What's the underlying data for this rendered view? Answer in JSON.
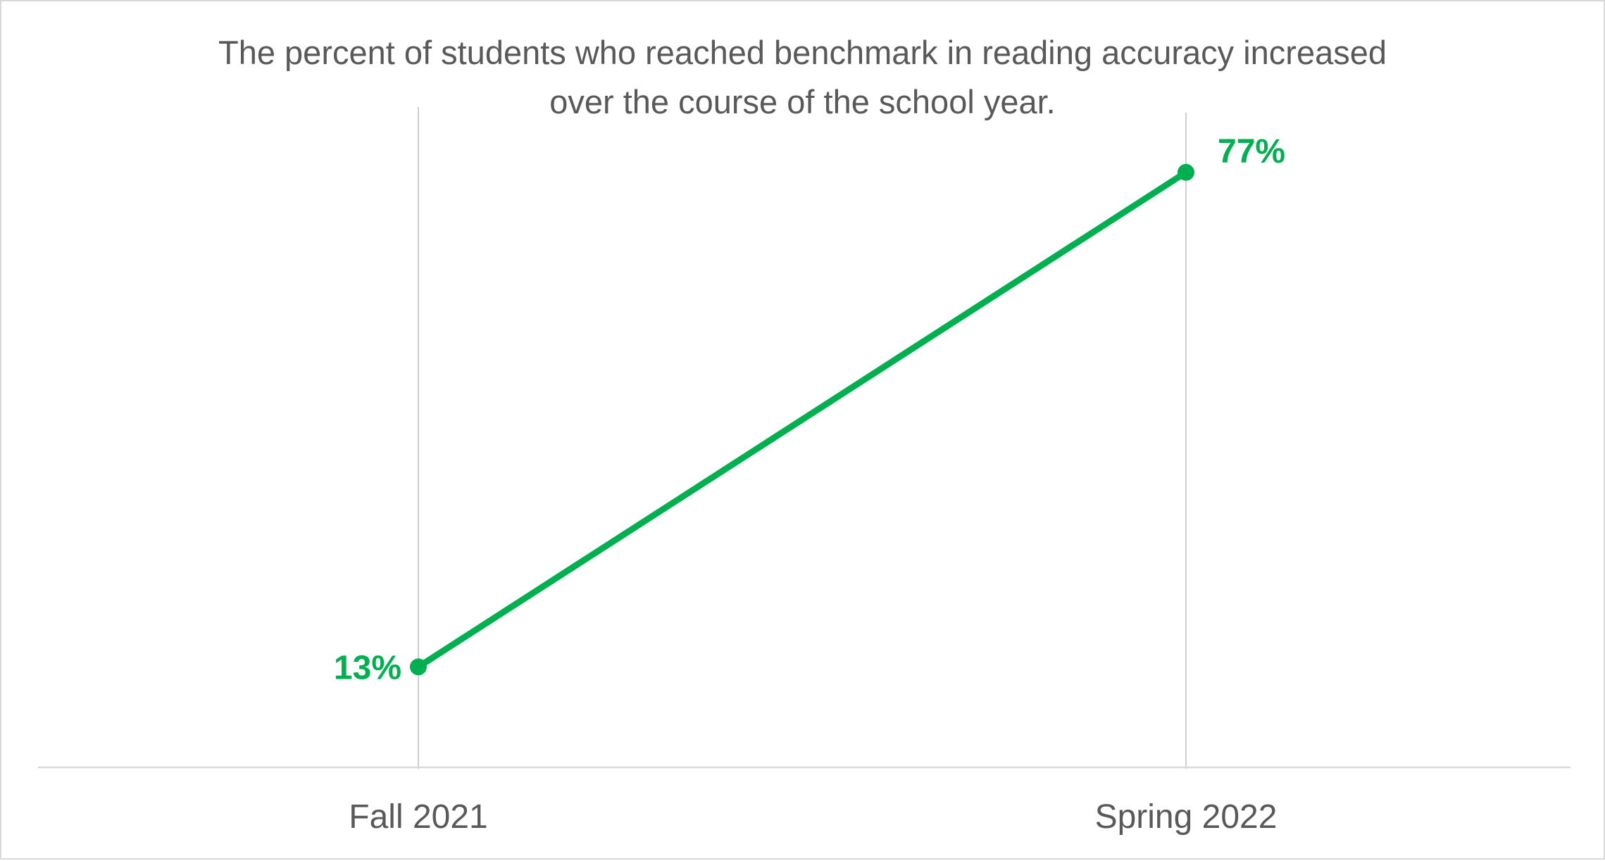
{
  "chart_data": {
    "type": "line",
    "title_lines": [
      "The percent of students who reached benchmark in reading accuracy increased",
      "over the course of the school year."
    ],
    "categories": [
      "Fall 2021",
      "Spring 2022"
    ],
    "series": [
      {
        "values": [
          13,
          77
        ],
        "data_labels": [
          "13%",
          "77%"
        ]
      }
    ],
    "xlabel": "",
    "ylabel": "",
    "ylim": [
      0,
      85
    ],
    "grid": "vertical",
    "legend": "none",
    "colors": {
      "series": "#00b050",
      "axis": "#d9d9d9",
      "gridline": "#bfbfbf",
      "text": "#595959"
    }
  }
}
